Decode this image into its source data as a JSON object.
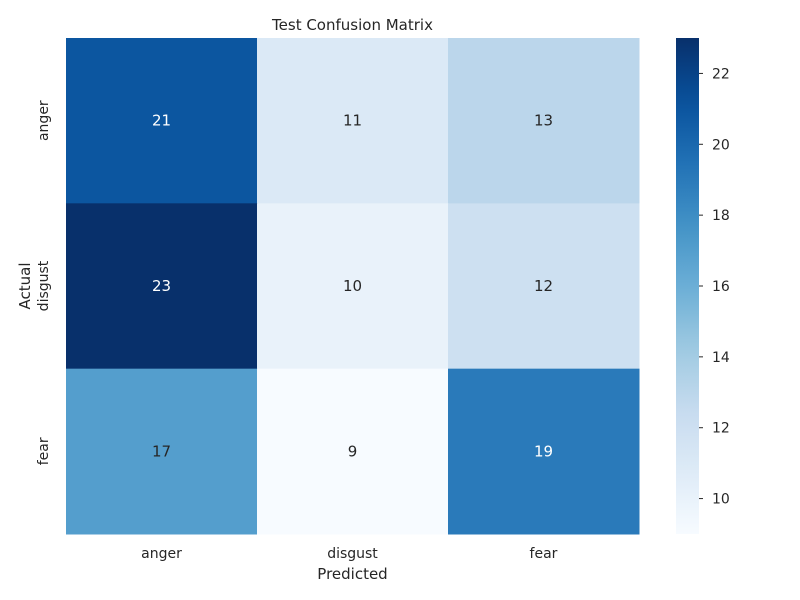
{
  "chart_data": {
    "type": "heatmap",
    "title": "Test Confusion Matrix",
    "xlabel": "Predicted",
    "ylabel": "Actual",
    "x_categories": [
      "anger",
      "disgust",
      "fear"
    ],
    "y_categories": [
      "anger",
      "disgust",
      "fear"
    ],
    "values": [
      [
        21,
        11,
        13
      ],
      [
        23,
        10,
        12
      ],
      [
        17,
        9,
        19
      ]
    ],
    "colormap": "Blues",
    "color_range": [
      9,
      23
    ],
    "colorbar_ticks": [
      10,
      12,
      14,
      16,
      18,
      20,
      22
    ],
    "annotated": true
  }
}
